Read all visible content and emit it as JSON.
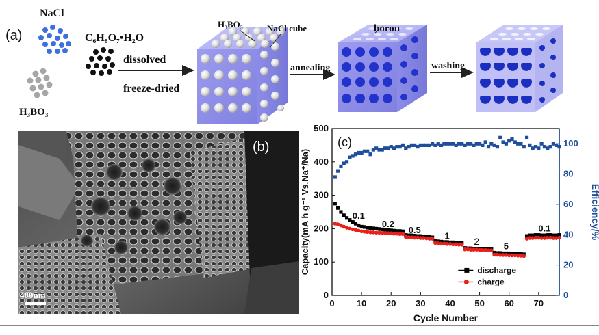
{
  "panel_a": {
    "label": "(a)",
    "nacl": "NaCl",
    "h3bo3_left": "H₃BO₃",
    "citric": "C₆H₈O₇•H₂O",
    "dissolved": "dissolved",
    "freeze": "freeze-dried",
    "h3bo3_cube": "H₃BO₃",
    "nacl_cube": "NaCl cube",
    "boron": "boron",
    "annealing": "annealing",
    "washing": "washing"
  },
  "panel_b": {
    "label": "(b)",
    "scale": "400nm"
  },
  "panel_c": {
    "label": "(c)",
    "rate_labels": [
      "0.1",
      "0.2",
      "0.5",
      "1",
      "2",
      "5",
      "0.1"
    ],
    "legend_discharge": "discharge",
    "legend_charge": "charge"
  },
  "chart_data": {
    "type": "scatter",
    "xlabel": "Cycle Number",
    "ylabel": "Capacity(mA h g⁻¹ Vs.Na⁺/Na)",
    "y2label": "Efficiency/%",
    "xlim": [
      0,
      77
    ],
    "ylim": [
      0,
      500
    ],
    "y2lim": [
      0,
      110
    ],
    "xticks": [
      0,
      10,
      20,
      30,
      40,
      50,
      60,
      70
    ],
    "yticks": [
      0,
      100,
      200,
      300,
      400,
      500
    ],
    "y2ticks": [
      0,
      20,
      40,
      60,
      80,
      100
    ],
    "colors": {
      "discharge": "#000000",
      "charge": "#e8201a",
      "efficiency": "#1f4e9c",
      "axis2": "#1f4e9c"
    },
    "series": [
      {
        "name": "discharge",
        "marker": "square",
        "color": "#000000",
        "x": [
          1,
          2,
          3,
          4,
          5,
          6,
          7,
          8,
          9,
          10,
          11,
          12,
          13,
          14,
          15,
          16,
          17,
          18,
          19,
          20,
          21,
          22,
          23,
          24,
          25,
          26,
          27,
          28,
          29,
          30,
          31,
          32,
          33,
          34,
          35,
          36,
          37,
          38,
          39,
          40,
          41,
          42,
          43,
          44,
          45,
          46,
          47,
          48,
          49,
          50,
          51,
          52,
          53,
          54,
          55,
          56,
          57,
          58,
          59,
          60,
          61,
          62,
          63,
          64,
          65,
          66,
          67,
          68,
          69,
          70,
          71,
          72,
          73,
          74,
          75,
          76,
          77
        ],
        "y": [
          275,
          262,
          250,
          240,
          232,
          226,
          220,
          215,
          210,
          206,
          205,
          203,
          202,
          201,
          200,
          199,
          198,
          197,
          196,
          195,
          194,
          193,
          193,
          192,
          181,
          180,
          180,
          179,
          178,
          178,
          177,
          176,
          175,
          174,
          163,
          162,
          161,
          160,
          160,
          159,
          159,
          158,
          158,
          157,
          142,
          141,
          141,
          140,
          140,
          140,
          139,
          139,
          139,
          138,
          128,
          127,
          127,
          126,
          126,
          126,
          125,
          125,
          124,
          124,
          123,
          178,
          180,
          180,
          181,
          181,
          180,
          180,
          181,
          181,
          180,
          180,
          181
        ]
      },
      {
        "name": "charge",
        "marker": "circle",
        "color": "#e8201a",
        "x": [
          1,
          2,
          3,
          4,
          5,
          6,
          7,
          8,
          9,
          10,
          11,
          12,
          13,
          14,
          15,
          16,
          17,
          18,
          19,
          20,
          21,
          22,
          23,
          24,
          25,
          26,
          27,
          28,
          29,
          30,
          31,
          32,
          33,
          34,
          35,
          36,
          37,
          38,
          39,
          40,
          41,
          42,
          43,
          44,
          45,
          46,
          47,
          48,
          49,
          50,
          51,
          52,
          53,
          54,
          55,
          56,
          57,
          58,
          59,
          60,
          61,
          62,
          63,
          64,
          65,
          66,
          67,
          68,
          69,
          70,
          71,
          72,
          73,
          74,
          75,
          76,
          77
        ],
        "y": [
          215,
          213,
          210,
          206,
          203,
          200,
          198,
          196,
          194,
          192,
          191,
          190,
          189,
          189,
          188,
          188,
          187,
          187,
          186,
          186,
          185,
          185,
          184,
          184,
          175,
          174,
          174,
          173,
          173,
          172,
          172,
          171,
          170,
          170,
          157,
          156,
          155,
          155,
          154,
          154,
          153,
          153,
          152,
          152,
          138,
          138,
          137,
          137,
          137,
          136,
          136,
          136,
          135,
          135,
          122,
          122,
          121,
          121,
          121,
          120,
          120,
          120,
          119,
          119,
          118,
          170,
          172,
          172,
          173,
          173,
          172,
          172,
          173,
          173,
          172,
          172,
          173
        ]
      },
      {
        "name": "efficiency",
        "marker": "square",
        "color": "#1f4e9c",
        "axis": "right",
        "x": [
          1,
          2,
          3,
          4,
          5,
          6,
          7,
          8,
          9,
          10,
          11,
          12,
          13,
          14,
          15,
          16,
          17,
          18,
          19,
          20,
          21,
          22,
          23,
          24,
          25,
          26,
          27,
          28,
          29,
          30,
          31,
          32,
          33,
          34,
          35,
          36,
          37,
          38,
          39,
          40,
          41,
          42,
          43,
          44,
          45,
          46,
          47,
          48,
          49,
          50,
          51,
          52,
          53,
          54,
          55,
          56,
          57,
          58,
          59,
          60,
          61,
          62,
          63,
          64,
          65,
          66,
          67,
          68,
          69,
          70,
          71,
          72,
          73,
          74,
          75,
          76,
          77
        ],
        "y": [
          78,
          82,
          85,
          87,
          88,
          91,
          92,
          93,
          94,
          94,
          95,
          95,
          93,
          96,
          97,
          96,
          96,
          97,
          97,
          98,
          97,
          98,
          98,
          99,
          97,
          98,
          99,
          99,
          98,
          99,
          99,
          99,
          99,
          100,
          99,
          100,
          99,
          100,
          100,
          100,
          100,
          99,
          100,
          100,
          99,
          100,
          100,
          99,
          100,
          100,
          99,
          101,
          98,
          100,
          99,
          98,
          104,
          101,
          100,
          102,
          103,
          101,
          100,
          100,
          98,
          104,
          99,
          97,
          98,
          97,
          100,
          98,
          97,
          98,
          100,
          99,
          98
        ]
      }
    ]
  }
}
